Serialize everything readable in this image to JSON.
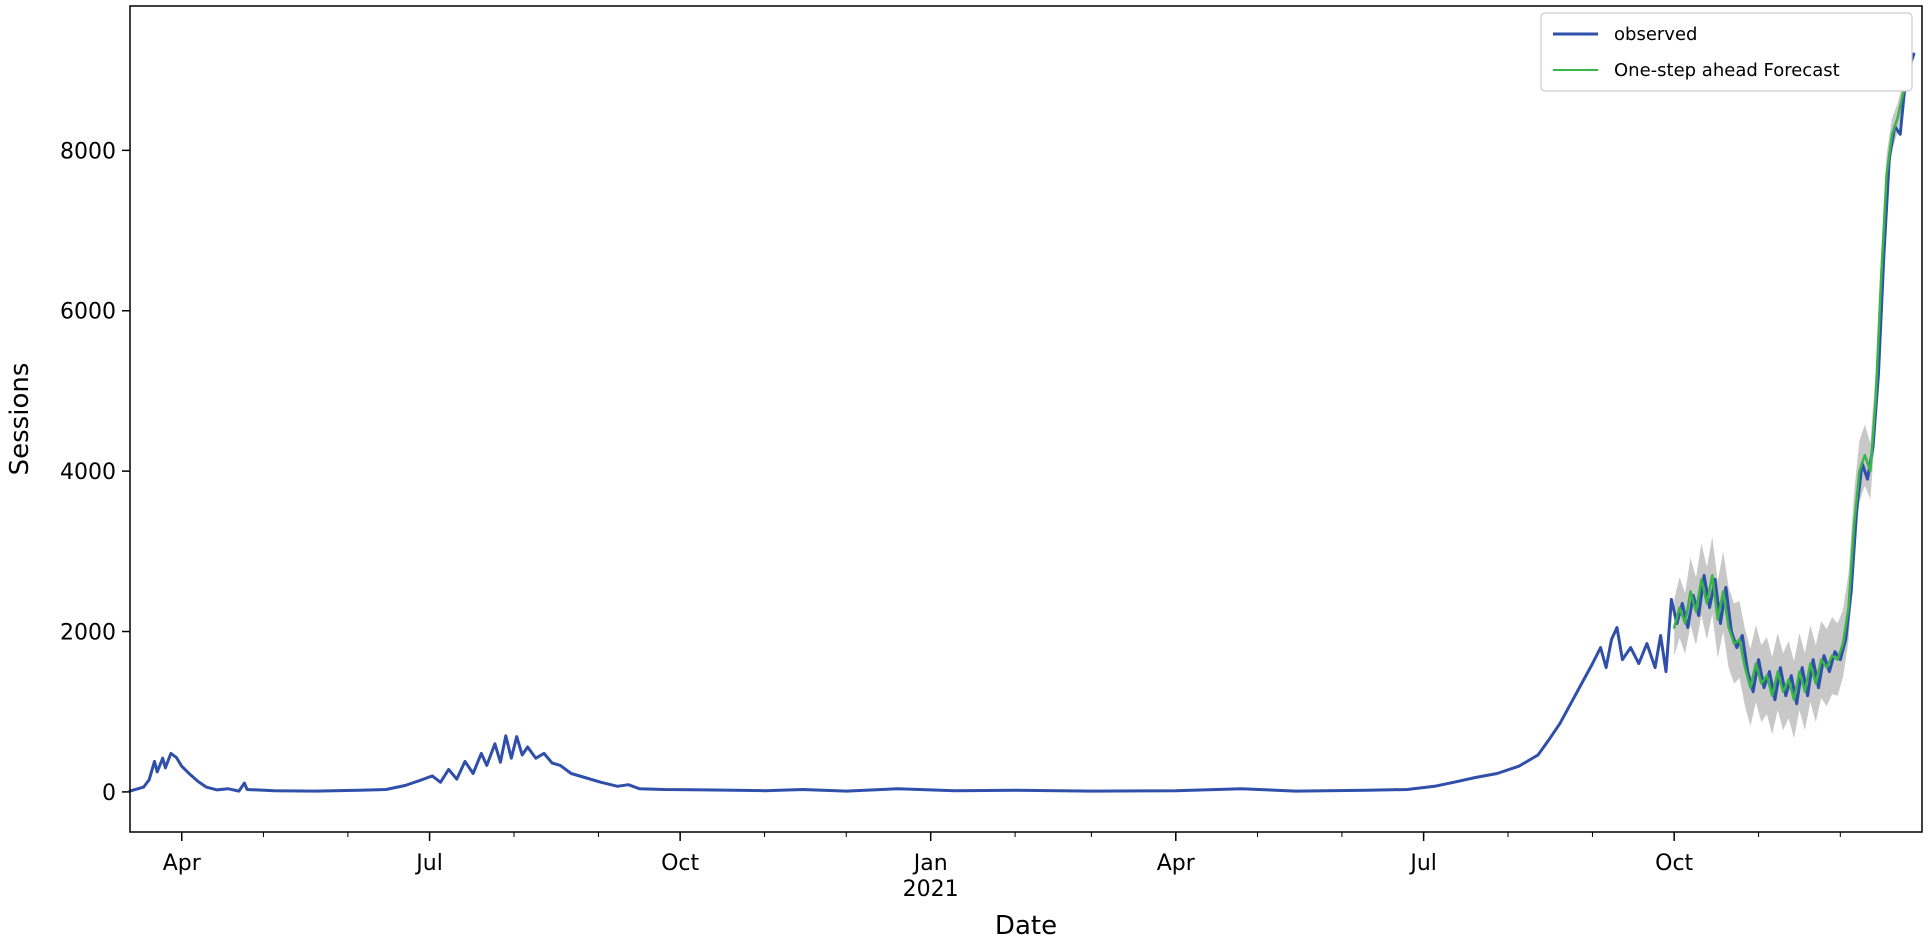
{
  "chart_data": {
    "type": "line",
    "xlabel": "Date",
    "ylabel": "Sessions",
    "x_axis_kind": "date",
    "xlim": [
      "2020-03-13",
      "2021-12-31"
    ],
    "ylim": [
      -500,
      9800
    ],
    "y_ticks": [
      0,
      2000,
      4000,
      6000,
      8000
    ],
    "x_ticks": [
      {
        "date": "2020-04-01",
        "label": "Apr",
        "sublabel": ""
      },
      {
        "date": "2020-07-01",
        "label": "Jul",
        "sublabel": ""
      },
      {
        "date": "2020-10-01",
        "label": "Oct",
        "sublabel": ""
      },
      {
        "date": "2021-01-01",
        "label": "Jan",
        "sublabel": "2021"
      },
      {
        "date": "2021-04-01",
        "label": "Apr",
        "sublabel": ""
      },
      {
        "date": "2021-07-01",
        "label": "Jul",
        "sublabel": ""
      },
      {
        "date": "2021-10-01",
        "label": "Oct",
        "sublabel": ""
      }
    ],
    "grid": false,
    "legend_position": "top-right",
    "legend": [
      "observed",
      "One-step ahead Forecast"
    ],
    "series": [
      {
        "name": "observed",
        "color": "#2f4faa",
        "points": [
          [
            "2020-03-13",
            10
          ],
          [
            "2020-03-18",
            60
          ],
          [
            "2020-03-20",
            150
          ],
          [
            "2020-03-22",
            380
          ],
          [
            "2020-03-23",
            250
          ],
          [
            "2020-03-25",
            420
          ],
          [
            "2020-03-26",
            300
          ],
          [
            "2020-03-28",
            480
          ],
          [
            "2020-03-30",
            430
          ],
          [
            "2020-04-01",
            320
          ],
          [
            "2020-04-04",
            220
          ],
          [
            "2020-04-07",
            130
          ],
          [
            "2020-04-10",
            60
          ],
          [
            "2020-04-14",
            25
          ],
          [
            "2020-04-18",
            40
          ],
          [
            "2020-04-22",
            10
          ],
          [
            "2020-04-24",
            110
          ],
          [
            "2020-04-25",
            30
          ],
          [
            "2020-05-05",
            15
          ],
          [
            "2020-05-20",
            10
          ],
          [
            "2020-06-05",
            20
          ],
          [
            "2020-06-15",
            30
          ],
          [
            "2020-06-22",
            80
          ],
          [
            "2020-06-28",
            150
          ],
          [
            "2020-07-02",
            200
          ],
          [
            "2020-07-05",
            120
          ],
          [
            "2020-07-08",
            280
          ],
          [
            "2020-07-11",
            160
          ],
          [
            "2020-07-14",
            380
          ],
          [
            "2020-07-17",
            230
          ],
          [
            "2020-07-20",
            480
          ],
          [
            "2020-07-22",
            330
          ],
          [
            "2020-07-25",
            600
          ],
          [
            "2020-07-27",
            370
          ],
          [
            "2020-07-29",
            700
          ],
          [
            "2020-07-31",
            420
          ],
          [
            "2020-08-02",
            690
          ],
          [
            "2020-08-04",
            460
          ],
          [
            "2020-08-06",
            560
          ],
          [
            "2020-08-09",
            420
          ],
          [
            "2020-08-12",
            480
          ],
          [
            "2020-08-15",
            360
          ],
          [
            "2020-08-18",
            330
          ],
          [
            "2020-08-22",
            230
          ],
          [
            "2020-08-27",
            180
          ],
          [
            "2020-09-02",
            120
          ],
          [
            "2020-09-08",
            70
          ],
          [
            "2020-09-12",
            90
          ],
          [
            "2020-09-16",
            40
          ],
          [
            "2020-09-25",
            30
          ],
          [
            "2020-10-10",
            25
          ],
          [
            "2020-11-01",
            15
          ],
          [
            "2020-11-15",
            30
          ],
          [
            "2020-12-01",
            10
          ],
          [
            "2020-12-20",
            40
          ],
          [
            "2021-01-10",
            15
          ],
          [
            "2021-02-01",
            20
          ],
          [
            "2021-03-01",
            10
          ],
          [
            "2021-04-01",
            15
          ],
          [
            "2021-04-25",
            40
          ],
          [
            "2021-05-15",
            10
          ],
          [
            "2021-06-10",
            20
          ],
          [
            "2021-06-25",
            30
          ],
          [
            "2021-07-05",
            70
          ],
          [
            "2021-07-12",
            120
          ],
          [
            "2021-07-20",
            180
          ],
          [
            "2021-07-28",
            230
          ],
          [
            "2021-08-05",
            320
          ],
          [
            "2021-08-12",
            460
          ],
          [
            "2021-08-16",
            650
          ],
          [
            "2021-08-20",
            850
          ],
          [
            "2021-08-24",
            1100
          ],
          [
            "2021-08-28",
            1350
          ],
          [
            "2021-09-01",
            1600
          ],
          [
            "2021-09-04",
            1800
          ],
          [
            "2021-09-06",
            1550
          ],
          [
            "2021-09-08",
            1900
          ],
          [
            "2021-09-10",
            2050
          ],
          [
            "2021-09-12",
            1650
          ],
          [
            "2021-09-15",
            1800
          ],
          [
            "2021-09-18",
            1600
          ],
          [
            "2021-09-21",
            1850
          ],
          [
            "2021-09-24",
            1550
          ],
          [
            "2021-09-26",
            1950
          ],
          [
            "2021-09-28",
            1500
          ],
          [
            "2021-09-30",
            2400
          ],
          [
            "2021-10-02",
            2100
          ],
          [
            "2021-10-04",
            2350
          ],
          [
            "2021-10-06",
            2050
          ],
          [
            "2021-10-08",
            2450
          ],
          [
            "2021-10-10",
            2200
          ],
          [
            "2021-10-12",
            2700
          ],
          [
            "2021-10-14",
            2300
          ],
          [
            "2021-10-16",
            2650
          ],
          [
            "2021-10-18",
            2100
          ],
          [
            "2021-10-20",
            2550
          ],
          [
            "2021-10-22",
            2000
          ],
          [
            "2021-10-24",
            1800
          ],
          [
            "2021-10-26",
            1950
          ],
          [
            "2021-10-28",
            1500
          ],
          [
            "2021-10-30",
            1250
          ],
          [
            "2021-11-01",
            1650
          ],
          [
            "2021-11-03",
            1300
          ],
          [
            "2021-11-05",
            1500
          ],
          [
            "2021-11-07",
            1150
          ],
          [
            "2021-11-09",
            1550
          ],
          [
            "2021-11-11",
            1200
          ],
          [
            "2021-11-13",
            1450
          ],
          [
            "2021-11-15",
            1100
          ],
          [
            "2021-11-17",
            1550
          ],
          [
            "2021-11-19",
            1200
          ],
          [
            "2021-11-21",
            1650
          ],
          [
            "2021-11-23",
            1300
          ],
          [
            "2021-11-25",
            1700
          ],
          [
            "2021-11-27",
            1500
          ],
          [
            "2021-11-29",
            1750
          ],
          [
            "2021-12-01",
            1650
          ],
          [
            "2021-12-03",
            1900
          ],
          [
            "2021-12-05",
            2500
          ],
          [
            "2021-12-07",
            3500
          ],
          [
            "2021-12-09",
            4100
          ],
          [
            "2021-12-11",
            3900
          ],
          [
            "2021-12-13",
            4300
          ],
          [
            "2021-12-15",
            5200
          ],
          [
            "2021-12-17",
            6700
          ],
          [
            "2021-12-19",
            7900
          ],
          [
            "2021-12-21",
            8300
          ],
          [
            "2021-12-23",
            8200
          ],
          [
            "2021-12-25",
            8900
          ],
          [
            "2021-12-28",
            9200
          ]
        ]
      },
      {
        "name": "One-step ahead Forecast",
        "color": "#3ab54a",
        "points": [
          [
            "2021-10-01",
            2050
          ],
          [
            "2021-10-03",
            2300
          ],
          [
            "2021-10-05",
            2100
          ],
          [
            "2021-10-07",
            2500
          ],
          [
            "2021-10-09",
            2250
          ],
          [
            "2021-10-11",
            2650
          ],
          [
            "2021-10-13",
            2350
          ],
          [
            "2021-10-15",
            2700
          ],
          [
            "2021-10-17",
            2150
          ],
          [
            "2021-10-19",
            2500
          ],
          [
            "2021-10-21",
            2050
          ],
          [
            "2021-10-23",
            1850
          ],
          [
            "2021-10-25",
            1900
          ],
          [
            "2021-10-27",
            1550
          ],
          [
            "2021-10-29",
            1300
          ],
          [
            "2021-10-31",
            1600
          ],
          [
            "2021-11-02",
            1350
          ],
          [
            "2021-11-04",
            1450
          ],
          [
            "2021-11-06",
            1200
          ],
          [
            "2021-11-08",
            1500
          ],
          [
            "2021-11-10",
            1250
          ],
          [
            "2021-11-12",
            1400
          ],
          [
            "2021-11-14",
            1150
          ],
          [
            "2021-11-16",
            1500
          ],
          [
            "2021-11-18",
            1250
          ],
          [
            "2021-11-20",
            1600
          ],
          [
            "2021-11-22",
            1350
          ],
          [
            "2021-11-24",
            1650
          ],
          [
            "2021-11-26",
            1550
          ],
          [
            "2021-11-28",
            1700
          ],
          [
            "2021-11-30",
            1650
          ],
          [
            "2021-12-02",
            1850
          ],
          [
            "2021-12-04",
            2300
          ],
          [
            "2021-12-06",
            3300
          ],
          [
            "2021-12-08",
            4000
          ],
          [
            "2021-12-10",
            4200
          ],
          [
            "2021-12-12",
            4000
          ],
          [
            "2021-12-14",
            4900
          ],
          [
            "2021-12-16",
            6400
          ],
          [
            "2021-12-18",
            7700
          ],
          [
            "2021-12-20",
            8200
          ],
          [
            "2021-12-22",
            8400
          ],
          [
            "2021-12-24",
            8700
          ],
          [
            "2021-12-27",
            9100
          ]
        ]
      }
    ],
    "confidence_band": {
      "color": "#b0b0b0",
      "half_width": [
        [
          350
        ],
        [
          380
        ],
        [
          380
        ],
        [
          420
        ],
        [
          420
        ],
        [
          450
        ],
        [
          450
        ],
        [
          480
        ],
        [
          480
        ],
        [
          500
        ],
        [
          500
        ],
        [
          500
        ],
        [
          480
        ],
        [
          480
        ],
        [
          480
        ],
        [
          480
        ],
        [
          480
        ],
        [
          480
        ],
        [
          480
        ],
        [
          480
        ],
        [
          480
        ],
        [
          480
        ],
        [
          480
        ],
        [
          480
        ],
        [
          480
        ],
        [
          480
        ],
        [
          480
        ],
        [
          480
        ],
        [
          480
        ],
        [
          480
        ],
        [
          450
        ],
        [
          420
        ],
        [
          420
        ],
        [
          420
        ],
        [
          380
        ],
        [
          380
        ],
        [
          350
        ],
        [
          350
        ],
        [
          300
        ],
        [
          250
        ],
        [
          200
        ],
        [
          180
        ],
        [
          150
        ],
        [
          120
        ]
      ]
    }
  }
}
